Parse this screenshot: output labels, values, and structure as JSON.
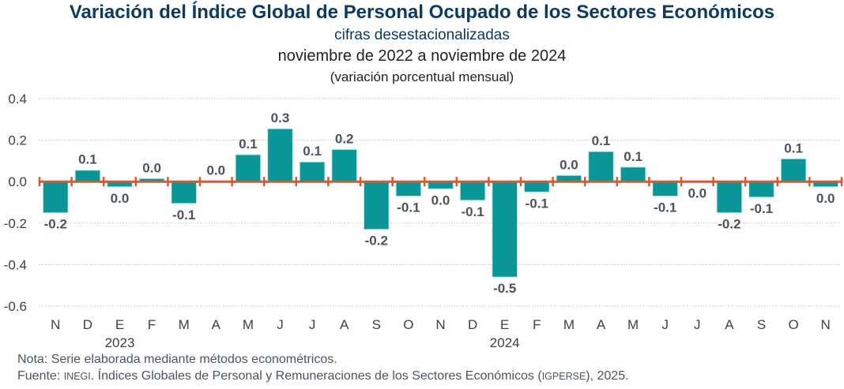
{
  "chart_data": {
    "type": "bar",
    "title": "Variación del Índice Global de Personal Ocupado de los Sectores Económicos",
    "subtitle": "cifras desestacionalizadas",
    "period": "noviembre de 2022 a noviembre de 2024",
    "unit_label": "(variación porcentual mensual)",
    "xlabel": "",
    "ylabel": "",
    "ylim": [
      -0.6,
      0.4
    ],
    "yticks": [
      0.4,
      0.2,
      0.0,
      -0.2,
      -0.4,
      -0.6
    ],
    "ytick_labels": [
      "0.4",
      "0.2",
      "0.0",
      "-0.2",
      "-0.4",
      "-0.6"
    ],
    "grid": true,
    "categories": [
      "N",
      "D",
      "E",
      "F",
      "M",
      "A",
      "M",
      "J",
      "J",
      "A",
      "S",
      "O",
      "N",
      "D",
      "E",
      "F",
      "M",
      "A",
      "M",
      "J",
      "J",
      "A",
      "S",
      "O",
      "N"
    ],
    "year_labels": [
      {
        "label": "2023",
        "category_index": 2
      },
      {
        "label": "2024",
        "category_index": 14
      }
    ],
    "series": [
      {
        "name": "Variación porcentual mensual",
        "values": [
          -0.15,
          0.055,
          -0.025,
          0.015,
          -0.105,
          0.002,
          0.13,
          0.255,
          0.095,
          0.155,
          -0.23,
          -0.07,
          -0.035,
          -0.09,
          -0.46,
          -0.05,
          0.03,
          0.145,
          0.07,
          -0.07,
          -0.002,
          -0.15,
          -0.075,
          0.11,
          -0.025
        ],
        "data_labels": [
          "-0.2",
          "0.1",
          "0.0",
          "0.0",
          "-0.1",
          "0.0",
          "0.1",
          "0.3",
          "0.1",
          "0.2",
          "-0.2",
          "-0.1",
          "0.0",
          "-0.1",
          "-0.5",
          "-0.1",
          "0.0",
          "0.1",
          "0.1",
          "-0.1",
          "0.0",
          "-0.2",
          "-0.1",
          "0.1",
          "0.0"
        ]
      }
    ],
    "colors": {
      "bar": "#0a9696",
      "bar_edge": "#bfe6e6",
      "zero_axis": "#e0562a",
      "grid": "#bfbfbf",
      "tick_text": "#404040",
      "data_label": "#4a545e"
    }
  },
  "footer": {
    "note": "Nota: Serie elaborada mediante métodos econométricos.",
    "source_prefix": "Fuente: ",
    "source_org": "INEGI",
    "source_mid": ". Índices Globales de Personal y Remuneraciones de los Sectores Económicos (",
    "source_abbr": "IGPERSE",
    "source_suffix": "), 2025."
  }
}
